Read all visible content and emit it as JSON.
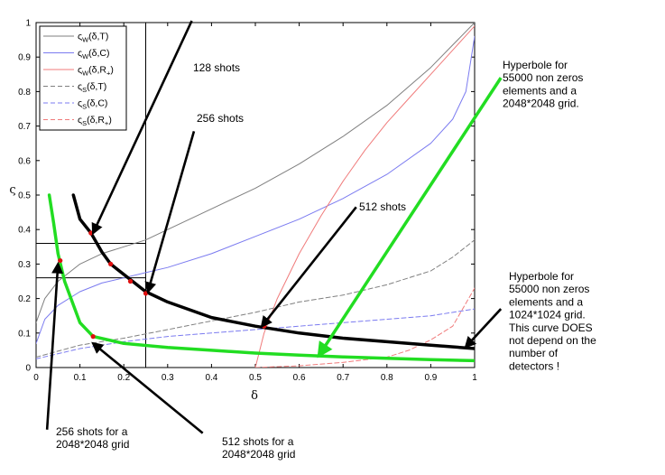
{
  "chart_data": {
    "type": "line",
    "xlabel": "δ",
    "ylabel": "ς",
    "xlim": [
      0,
      1
    ],
    "ylim": [
      0,
      1
    ],
    "x_ticks": [
      "0",
      "0.1",
      "0.2",
      "0.3",
      "0.4",
      "0.5",
      "0.6",
      "0.7",
      "0.8",
      "0.9",
      "1"
    ],
    "y_ticks": [
      "0",
      "0.1",
      "0.2",
      "0.3",
      "0.4",
      "0.5",
      "0.6",
      "0.7",
      "0.8",
      "0.9",
      "1"
    ],
    "legend_position": "top-left",
    "legend": [
      {
        "base": "ς",
        "sub1": "W",
        "mid": "(δ,T)",
        "sub2": "",
        "tail": "",
        "color": "#7f7f7f",
        "style": "solid"
      },
      {
        "base": "ς",
        "sub1": "W",
        "mid": "(δ,C)",
        "sub2": "",
        "tail": "",
        "color": "#7b7bf0",
        "style": "solid"
      },
      {
        "base": "ς",
        "sub1": "W",
        "mid": "(δ,R",
        "sub2": "+",
        "tail": ")",
        "color": "#f07b7b",
        "style": "solid"
      },
      {
        "base": "ς",
        "sub1": "S",
        "mid": "(δ,T)",
        "sub2": "",
        "tail": "",
        "color": "#7f7f7f",
        "style": "dashed"
      },
      {
        "base": "ς",
        "sub1": "S",
        "mid": "(δ,C)",
        "sub2": "",
        "tail": "",
        "color": "#7b7bf0",
        "style": "dashed"
      },
      {
        "base": "ς",
        "sub1": "S",
        "mid": "(δ,R",
        "sub2": "+",
        "tail": ")",
        "color": "#f07b7b",
        "style": "dashed"
      }
    ],
    "series": [
      {
        "color": "#7f7f7f",
        "style": "solid",
        "width": 1,
        "x": [
          0,
          0.02,
          0.05,
          0.1,
          0.15,
          0.2,
          0.25,
          0.3,
          0.4,
          0.5,
          0.6,
          0.7,
          0.8,
          0.9,
          1.0
        ],
        "y": [
          0.13,
          0.2,
          0.25,
          0.3,
          0.33,
          0.35,
          0.37,
          0.4,
          0.46,
          0.52,
          0.59,
          0.67,
          0.76,
          0.87,
          1.0
        ]
      },
      {
        "color": "#7b7bf0",
        "style": "solid",
        "width": 1,
        "x": [
          0,
          0.02,
          0.05,
          0.1,
          0.15,
          0.2,
          0.25,
          0.3,
          0.4,
          0.5,
          0.6,
          0.7,
          0.8,
          0.9,
          0.95,
          0.98,
          1.0
        ],
        "y": [
          0.07,
          0.14,
          0.18,
          0.22,
          0.245,
          0.26,
          0.275,
          0.29,
          0.33,
          0.38,
          0.43,
          0.49,
          0.56,
          0.65,
          0.72,
          0.8,
          0.96
        ]
      },
      {
        "color": "#f07b7b",
        "style": "solid",
        "width": 1,
        "x": [
          0.5,
          0.52,
          0.55,
          0.6,
          0.65,
          0.7,
          0.75,
          0.8,
          0.85,
          0.9,
          0.95,
          1.0
        ],
        "y": [
          0.0,
          0.1,
          0.2,
          0.33,
          0.44,
          0.54,
          0.63,
          0.71,
          0.78,
          0.85,
          0.92,
          0.99
        ]
      },
      {
        "color": "#7f7f7f",
        "style": "dashed",
        "width": 1,
        "x": [
          0,
          0.1,
          0.2,
          0.3,
          0.4,
          0.5,
          0.6,
          0.7,
          0.8,
          0.9,
          0.95,
          1.0
        ],
        "y": [
          0.03,
          0.065,
          0.085,
          0.11,
          0.135,
          0.16,
          0.19,
          0.21,
          0.24,
          0.28,
          0.32,
          0.37
        ]
      },
      {
        "color": "#7b7bf0",
        "style": "dashed",
        "width": 1,
        "x": [
          0,
          0.1,
          0.2,
          0.3,
          0.4,
          0.5,
          0.6,
          0.7,
          0.8,
          0.9,
          1.0
        ],
        "y": [
          0.025,
          0.055,
          0.075,
          0.09,
          0.1,
          0.11,
          0.12,
          0.13,
          0.14,
          0.15,
          0.17
        ]
      },
      {
        "color": "#f07b7b",
        "style": "dashed",
        "width": 1,
        "x": [
          0.5,
          0.6,
          0.7,
          0.8,
          0.85,
          0.9,
          0.95,
          1.0
        ],
        "y": [
          0.0,
          0.005,
          0.015,
          0.03,
          0.05,
          0.08,
          0.12,
          0.23
        ]
      },
      {
        "color": "#000000",
        "style": "solid",
        "width": 3.5,
        "x": [
          0.085,
          0.1,
          0.125,
          0.15,
          0.17,
          0.2,
          0.25,
          0.3,
          0.4,
          0.5,
          0.6,
          0.7,
          0.8,
          0.9,
          1.0
        ],
        "y": [
          0.5,
          0.43,
          0.39,
          0.335,
          0.3,
          0.27,
          0.22,
          0.19,
          0.145,
          0.12,
          0.1,
          0.085,
          0.075,
          0.065,
          0.055
        ]
      },
      {
        "color": "#22dd22",
        "style": "solid",
        "width": 3.5,
        "x": [
          0.03,
          0.04,
          0.05,
          0.065,
          0.1,
          0.13,
          0.2,
          0.3,
          0.4,
          0.5,
          0.6,
          0.7,
          0.8,
          0.9,
          1.0
        ],
        "y": [
          0.5,
          0.42,
          0.33,
          0.25,
          0.13,
          0.09,
          0.07,
          0.058,
          0.05,
          0.042,
          0.036,
          0.031,
          0.027,
          0.023,
          0.02
        ]
      }
    ],
    "markers": {
      "color": "#e01010",
      "points": [
        [
          0.125,
          0.39
        ],
        [
          0.17,
          0.3
        ],
        [
          0.215,
          0.25
        ],
        [
          0.25,
          0.215
        ],
        [
          0.52,
          0.12
        ],
        [
          0.055,
          0.31
        ],
        [
          0.13,
          0.09
        ]
      ]
    },
    "guides": [
      {
        "kind": "h",
        "y": 0.36,
        "x0": 0,
        "x1": 0.25
      },
      {
        "kind": "h",
        "y": 0.26,
        "x0": 0,
        "x1": 0.25
      },
      {
        "kind": "v",
        "x": 0.25,
        "y0": 0,
        "y1": 1
      }
    ],
    "annotations": [
      {
        "lines": [
          "128 shots"
        ]
      },
      {
        "lines": [
          "256 shots"
        ]
      },
      {
        "lines": [
          "512 shots"
        ]
      },
      {
        "lines": [
          "Hyperbole for",
          "55000 non zeros",
          "elements and a",
          "2048*2048 grid."
        ]
      },
      {
        "lines": [
          "Hyperbole for",
          "55000 non zeros",
          "elements and a",
          "1024*1024 grid.",
          "This curve DOES",
          "not depend on the",
          "number of",
          "detectors !"
        ]
      },
      {
        "lines": [
          "256 shots for a",
          "2048*2048 grid"
        ]
      },
      {
        "lines": [
          "512 shots for a",
          "2048*2048 grid"
        ]
      }
    ],
    "arrows": [
      {
        "color": "#000000",
        "from": [
          0.355,
          1.005
        ],
        "to": [
          0.13,
          0.39
        ]
      },
      {
        "color": "#000000",
        "from": [
          0.36,
          0.685
        ],
        "to": [
          0.255,
          0.22
        ]
      },
      {
        "color": "#000000",
        "from": [
          0.73,
          0.465
        ],
        "to": [
          0.515,
          0.12
        ]
      },
      {
        "color": "#22dd22",
        "from": [
          1.06,
          0.84
        ],
        "to": [
          0.645,
          0.035
        ]
      },
      {
        "color": "#000000",
        "from": [
          1.06,
          0.17
        ],
        "to": [
          0.98,
          0.06
        ]
      },
      {
        "color": "#000000",
        "from": [
          0.025,
          -0.18
        ],
        "to": [
          0.05,
          0.3
        ]
      },
      {
        "color": "#000000",
        "from": [
          0.38,
          -0.19
        ],
        "to": [
          0.13,
          0.07
        ]
      }
    ]
  }
}
